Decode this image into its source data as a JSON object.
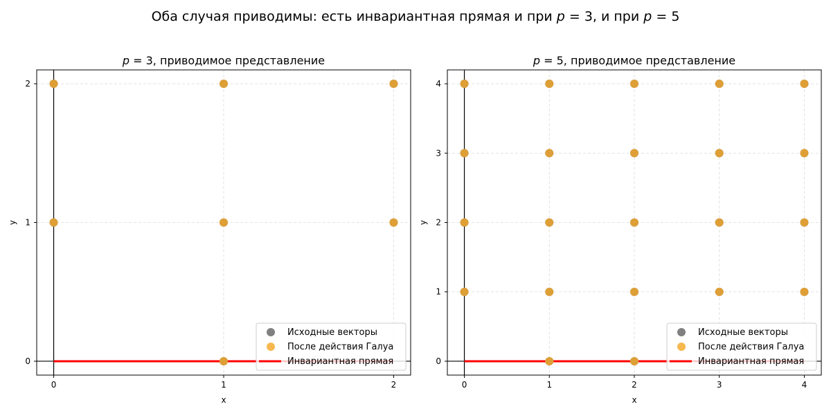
{
  "suptitle": "Оба случая приводимы: есть инвариантная прямая и при p = 3, и при p = 5",
  "colors": {
    "original": "#808080",
    "galois": "#f5a623",
    "invariant": "#ff0000"
  },
  "chart_data": [
    {
      "type": "scatter",
      "title": "p = 3, приводимое представление",
      "xlabel": "x",
      "ylabel": "y",
      "xlim": [
        -0.1,
        2.1
      ],
      "ylim": [
        -0.1,
        2.1
      ],
      "xticks": [
        0,
        1,
        2
      ],
      "yticks": [
        0,
        1,
        2
      ],
      "grid": true,
      "legend_position": "lower-right",
      "series": [
        {
          "name": "Исходные векторы",
          "kind": "points",
          "points": [
            [
              0,
              1
            ],
            [
              0,
              2
            ],
            [
              1,
              0
            ],
            [
              1,
              1
            ],
            [
              1,
              2
            ],
            [
              2,
              1
            ],
            [
              2,
              2
            ]
          ]
        },
        {
          "name": "После действия Галуа",
          "kind": "points",
          "points": [
            [
              0,
              1
            ],
            [
              0,
              2
            ],
            [
              1,
              0
            ],
            [
              1,
              1
            ],
            [
              1,
              2
            ],
            [
              2,
              1
            ],
            [
              2,
              2
            ]
          ]
        },
        {
          "name": "Инвариантная прямая",
          "kind": "line",
          "points": [
            [
              0,
              0
            ],
            [
              2,
              0
            ]
          ]
        }
      ]
    },
    {
      "type": "scatter",
      "title": "p = 5, приводимое представление",
      "xlabel": "x",
      "ylabel": "y",
      "xlim": [
        -0.2,
        4.2
      ],
      "ylim": [
        -0.2,
        4.2
      ],
      "xticks": [
        0,
        1,
        2,
        3,
        4
      ],
      "yticks": [
        0,
        1,
        2,
        3,
        4
      ],
      "grid": true,
      "legend_position": "lower-right",
      "series": [
        {
          "name": "Исходные векторы",
          "kind": "points",
          "points": [
            [
              0,
              1
            ],
            [
              0,
              2
            ],
            [
              0,
              3
            ],
            [
              0,
              4
            ],
            [
              1,
              0
            ],
            [
              1,
              1
            ],
            [
              1,
              2
            ],
            [
              1,
              3
            ],
            [
              1,
              4
            ],
            [
              2,
              0
            ],
            [
              2,
              1
            ],
            [
              2,
              2
            ],
            [
              2,
              3
            ],
            [
              2,
              4
            ],
            [
              3,
              1
            ],
            [
              3,
              2
            ],
            [
              3,
              3
            ],
            [
              3,
              4
            ],
            [
              4,
              1
            ],
            [
              4,
              2
            ],
            [
              4,
              3
            ],
            [
              4,
              4
            ]
          ]
        },
        {
          "name": "После действия Галуа",
          "kind": "points",
          "points": [
            [
              0,
              1
            ],
            [
              0,
              2
            ],
            [
              0,
              3
            ],
            [
              0,
              4
            ],
            [
              1,
              0
            ],
            [
              1,
              1
            ],
            [
              1,
              2
            ],
            [
              1,
              3
            ],
            [
              1,
              4
            ],
            [
              2,
              0
            ],
            [
              2,
              1
            ],
            [
              2,
              2
            ],
            [
              2,
              3
            ],
            [
              2,
              4
            ],
            [
              3,
              1
            ],
            [
              3,
              2
            ],
            [
              3,
              3
            ],
            [
              3,
              4
            ],
            [
              4,
              1
            ],
            [
              4,
              2
            ],
            [
              4,
              3
            ],
            [
              4,
              4
            ]
          ]
        },
        {
          "name": "Инвариантная прямая",
          "kind": "line",
          "points": [
            [
              0,
              0
            ],
            [
              4,
              0
            ]
          ]
        }
      ]
    }
  ]
}
